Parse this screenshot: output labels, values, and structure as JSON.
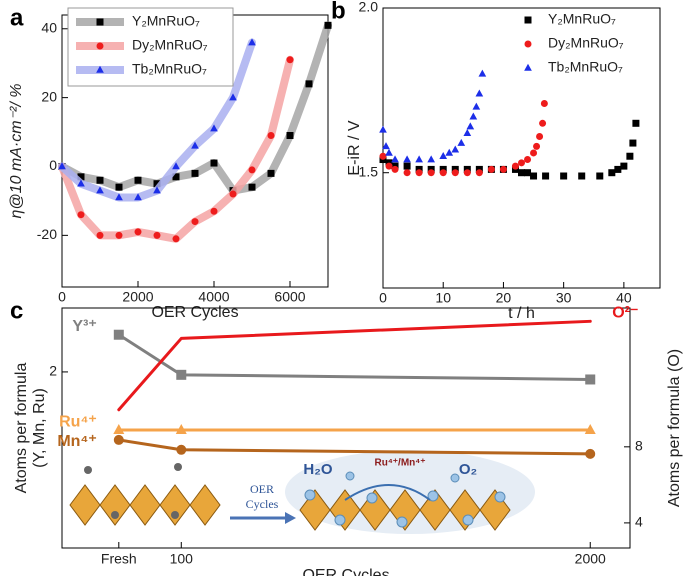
{
  "chart_data": [
    {
      "label": "a",
      "type": "line",
      "xlabel": "OER Cycles",
      "ylabel": "η@10 mA·cm⁻²/ %",
      "xlim": [
        0,
        7000
      ],
      "ylim": [
        -35,
        44
      ],
      "xticks": [
        0,
        2000,
        4000,
        6000
      ],
      "yticks": [
        -20,
        0,
        20,
        40
      ],
      "legend": "upper left",
      "series": [
        {
          "name": "Y₂MnRuO₇",
          "color": "#a6a6a6",
          "marker_color": "#000000",
          "marker": "square",
          "x": [
            0,
            500,
            1000,
            1500,
            2000,
            2500,
            3000,
            3500,
            4000,
            4500,
            5000,
            5500,
            6000,
            6500,
            7000
          ],
          "values": [
            0,
            -3,
            -4,
            -6,
            -4,
            -5,
            -3,
            -2,
            1,
            -7,
            -6,
            -2,
            9,
            24,
            41
          ]
        },
        {
          "name": "Dy₂MnRuO₇",
          "color": "#f5a3a3",
          "marker_color": "#ee1c1c",
          "marker": "circle",
          "x": [
            0,
            500,
            1000,
            1500,
            2000,
            2500,
            3000,
            3500,
            4000,
            4500,
            5000,
            5500,
            6000
          ],
          "values": [
            0,
            -14,
            -20,
            -20,
            -19,
            -20,
            -21,
            -16,
            -13,
            -8,
            -1,
            9,
            31
          ]
        },
        {
          "name": "Tb₂MnRuO₇",
          "color": "#a9aff0",
          "marker_color": "#1c2ee8",
          "marker": "triangle",
          "x": [
            0,
            500,
            1000,
            1500,
            2000,
            2500,
            3000,
            3500,
            4000,
            4500,
            5000
          ],
          "values": [
            0,
            -5,
            -7,
            -9,
            -9,
            -7,
            0,
            6,
            11,
            20,
            36
          ]
        }
      ]
    },
    {
      "label": "b",
      "type": "scatter",
      "xlabel": "t / h",
      "ylabel": "E-iR / V",
      "xlim": [
        0,
        46
      ],
      "ylim": [
        1.15,
        2.0
      ],
      "xticks": [
        0,
        10,
        20,
        30,
        40
      ],
      "yticks": [
        1.5,
        {
          "value": 2,
          "label": "2.0"
        }
      ],
      "legend": "upper right",
      "series": [
        {
          "name": "Y₂MnRuO₇",
          "color": "#000000",
          "marker": "square",
          "x": [
            0,
            1,
            2,
            4,
            6,
            8,
            10,
            12,
            14,
            16,
            18,
            20,
            22,
            23,
            24,
            25,
            27,
            30,
            33,
            36,
            38,
            39,
            40,
            41,
            41.5,
            42
          ],
          "values": [
            1.54,
            1.53,
            1.52,
            1.52,
            1.51,
            1.51,
            1.51,
            1.51,
            1.51,
            1.51,
            1.51,
            1.51,
            1.51,
            1.5,
            1.5,
            1.49,
            1.49,
            1.49,
            1.49,
            1.49,
            1.5,
            1.51,
            1.52,
            1.55,
            1.59,
            1.65
          ]
        },
        {
          "name": "Dy₂MnRuO₇",
          "color": "#ee1c1c",
          "marker": "circle",
          "x": [
            0,
            1,
            2,
            4,
            6,
            8,
            10,
            12,
            14,
            16,
            18,
            20,
            22,
            23,
            24,
            25,
            25.5,
            26,
            26.5,
            26.8
          ],
          "values": [
            1.55,
            1.52,
            1.51,
            1.5,
            1.5,
            1.5,
            1.5,
            1.5,
            1.5,
            1.5,
            1.51,
            1.51,
            1.52,
            1.53,
            1.54,
            1.56,
            1.58,
            1.61,
            1.65,
            1.71
          ]
        },
        {
          "name": "Tb₂MnRuO₇",
          "color": "#1c2ee8",
          "marker": "triangle",
          "x": [
            0,
            0.5,
            1,
            2,
            4,
            6,
            8,
            10,
            11,
            12,
            13,
            14,
            14.5,
            15,
            15.5,
            16,
            16.5
          ],
          "values": [
            1.63,
            1.58,
            1.56,
            1.54,
            1.54,
            1.54,
            1.54,
            1.55,
            1.56,
            1.57,
            1.59,
            1.62,
            1.64,
            1.67,
            1.7,
            1.74,
            1.8
          ]
        }
      ]
    },
    {
      "label": "c",
      "type": "line",
      "categories": [
        "Fresh",
        "100",
        "2000"
      ],
      "xlabel": "OER Cycles",
      "ylabel": [
        "Atoms per formula",
        "(Y, Mn, Ru)"
      ],
      "y2label": "Atoms per formula (O)",
      "ylim": [
        -1.03,
        3.1
      ],
      "yticks": [
        2
      ],
      "y2lim": [
        2.68,
        15.3
      ],
      "y2ticks": [
        4,
        8
      ],
      "series": [
        {
          "name": "Y³⁺",
          "color": "#808080",
          "marker": "square",
          "values": [
            2.64,
            1.95,
            1.87
          ]
        },
        {
          "name": "Ru⁴⁺",
          "color": "#f5a34a",
          "marker": "triangle",
          "values": [
            1.0,
            1.0,
            1.0
          ]
        },
        {
          "name": "Mn⁴⁺",
          "color": "#b5651d",
          "marker": "circle",
          "values": [
            0.83,
            0.66,
            0.59
          ]
        },
        {
          "name": "O²⁻",
          "color": "#e8191c",
          "axis": "y2",
          "values": [
            9.95,
            13.7,
            14.6
          ]
        }
      ],
      "annotations": [
        "OER",
        "Cycles",
        "H₂O",
        "Ru⁴⁺/Mn⁴⁺",
        "O₂"
      ]
    }
  ]
}
